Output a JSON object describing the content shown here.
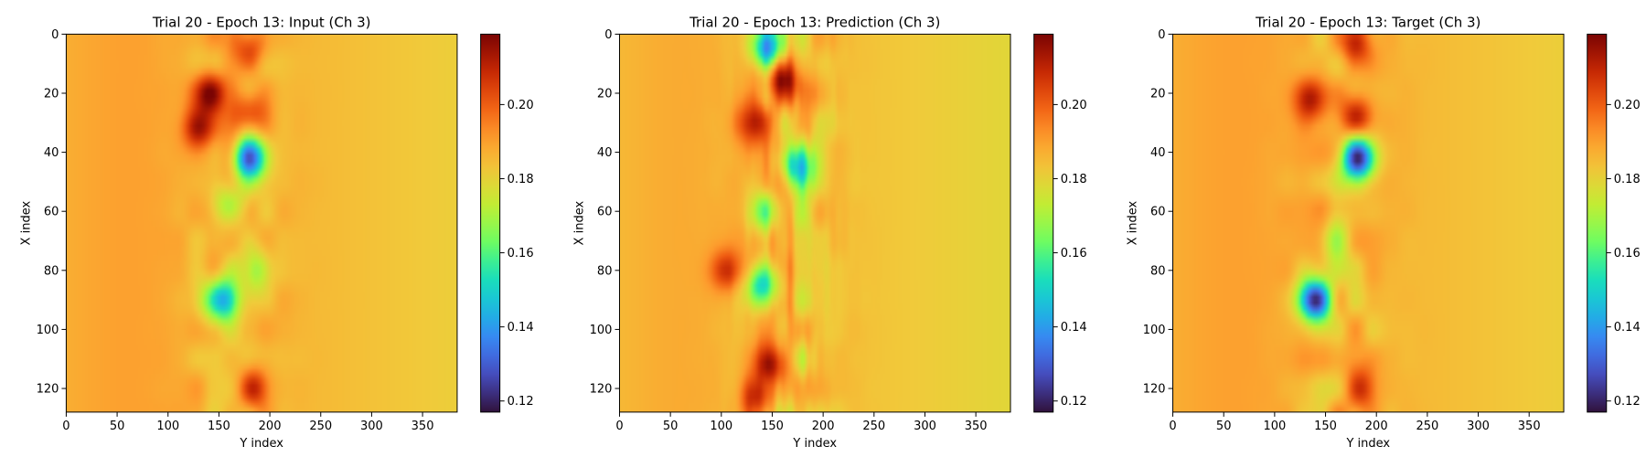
{
  "figure": {
    "panels": [
      {
        "title": "Trial 20 - Epoch 13: Input (Ch 3)",
        "kind": "input"
      },
      {
        "title": "Trial 20 - Epoch 13: Prediction (Ch 3)",
        "kind": "prediction"
      },
      {
        "title": "Trial 20 - Epoch 13: Target (Ch 3)",
        "kind": "target"
      }
    ]
  },
  "chart_data": [
    {
      "type": "heatmap",
      "title": "Trial 20 - Epoch 13: Input (Ch 3)",
      "xlabel": "Y index",
      "ylabel": "X index",
      "xlim": [
        0,
        384
      ],
      "ylim": [
        128,
        0
      ],
      "xticks": [
        0,
        50,
        100,
        150,
        200,
        250,
        300,
        350
      ],
      "yticks": [
        0,
        20,
        40,
        60,
        80,
        100,
        120
      ],
      "colormap": "turbo",
      "colorbar": {
        "vmin": 0.117,
        "vmax": 0.219,
        "ticks": [
          "0.12",
          "0.14",
          "0.16",
          "0.18",
          "0.20"
        ]
      },
      "background_value": 0.186,
      "features": [
        {
          "y": 180,
          "x": 4,
          "value": 0.206
        },
        {
          "y": 140,
          "x": 20,
          "value": 0.213
        },
        {
          "y": 130,
          "x": 32,
          "value": 0.21
        },
        {
          "y": 180,
          "x": 26,
          "value": 0.204
        },
        {
          "y": 180,
          "x": 42,
          "value": 0.132
        },
        {
          "y": 160,
          "x": 58,
          "value": 0.164
        },
        {
          "y": 150,
          "x": 90,
          "value": 0.14
        },
        {
          "y": 185,
          "x": 80,
          "value": 0.162
        },
        {
          "y": 185,
          "x": 120,
          "value": 0.212
        }
      ]
    },
    {
      "type": "heatmap",
      "title": "Trial 20 - Epoch 13: Prediction (Ch 3)",
      "xlabel": "Y index",
      "ylabel": "X index",
      "xlim": [
        0,
        384
      ],
      "ylim": [
        128,
        0
      ],
      "xticks": [
        0,
        50,
        100,
        150,
        200,
        250,
        300,
        350
      ],
      "yticks": [
        0,
        20,
        40,
        60,
        80,
        100,
        120
      ],
      "colormap": "turbo",
      "colorbar": {
        "vmin": 0.117,
        "vmax": 0.219,
        "ticks": [
          "0.12",
          "0.14",
          "0.16",
          "0.18",
          "0.20"
        ]
      },
      "background_value": 0.184,
      "features": [
        {
          "y": 145,
          "x": 4,
          "value": 0.14
        },
        {
          "y": 160,
          "x": 15,
          "value": 0.214
        },
        {
          "y": 130,
          "x": 30,
          "value": 0.212
        },
        {
          "y": 175,
          "x": 45,
          "value": 0.15
        },
        {
          "y": 140,
          "x": 60,
          "value": 0.162
        },
        {
          "y": 140,
          "x": 85,
          "value": 0.15
        },
        {
          "y": 105,
          "x": 80,
          "value": 0.205
        },
        {
          "y": 150,
          "x": 112,
          "value": 0.21
        },
        {
          "y": 135,
          "x": 123,
          "value": 0.205
        }
      ]
    },
    {
      "type": "heatmap",
      "title": "Trial 20 - Epoch 13: Target (Ch 3)",
      "xlabel": "Y index",
      "ylabel": "X index",
      "xlim": [
        0,
        384
      ],
      "ylim": [
        128,
        0
      ],
      "xticks": [
        0,
        50,
        100,
        150,
        200,
        250,
        300,
        350
      ],
      "yticks": [
        0,
        20,
        40,
        60,
        80,
        100,
        120
      ],
      "colormap": "turbo",
      "colorbar": {
        "vmin": 0.117,
        "vmax": 0.219,
        "ticks": [
          "0.12",
          "0.14",
          "0.16",
          "0.18",
          "0.20"
        ]
      },
      "background_value": 0.186,
      "features": [
        {
          "y": 180,
          "x": 4,
          "value": 0.206
        },
        {
          "y": 135,
          "x": 22,
          "value": 0.21
        },
        {
          "y": 180,
          "x": 28,
          "value": 0.212
        },
        {
          "y": 182,
          "x": 42,
          "value": 0.125
        },
        {
          "y": 140,
          "x": 90,
          "value": 0.125
        },
        {
          "y": 160,
          "x": 70,
          "value": 0.166
        },
        {
          "y": 185,
          "x": 120,
          "value": 0.21
        }
      ]
    }
  ]
}
